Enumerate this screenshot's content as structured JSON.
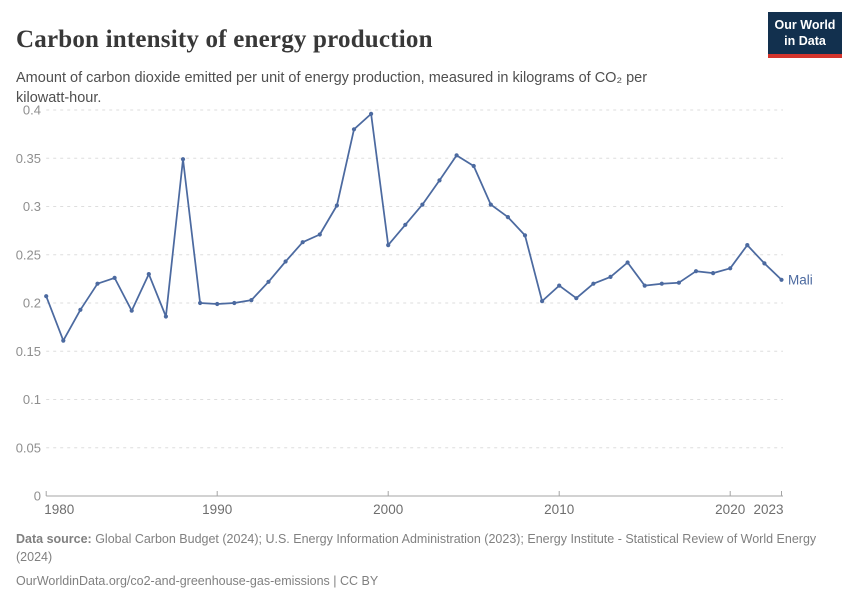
{
  "header": {
    "title": "Carbon intensity of energy production",
    "subtitle": "Amount of carbon dioxide emitted per unit of energy production, measured in kilograms of CO₂ per kilowatt-hour.",
    "logo": {
      "line1": "Our World",
      "line2": "in Data"
    }
  },
  "chart_data": {
    "type": "line",
    "title": "Carbon intensity of energy production",
    "ylabel": "kilograms of CO₂ per kilowatt-hour",
    "xlabel": "",
    "xlim": [
      1980,
      2023
    ],
    "ylim": [
      0,
      0.4
    ],
    "x_ticks": [
      1980,
      1990,
      2000,
      2010,
      2020,
      2023
    ],
    "y_ticks": [
      0,
      0.05,
      0.1,
      0.15,
      0.2,
      0.25,
      0.3,
      0.35,
      0.4
    ],
    "grid": "horizontal-dashed",
    "legend_position": "end-of-line-label",
    "series": [
      {
        "name": "Mali",
        "end_label": "Mali",
        "x": [
          1980,
          1981,
          1982,
          1983,
          1984,
          1985,
          1986,
          1987,
          1988,
          1989,
          1990,
          1991,
          1992,
          1993,
          1994,
          1995,
          1996,
          1997,
          1998,
          1999,
          2000,
          2001,
          2002,
          2003,
          2004,
          2005,
          2006,
          2007,
          2008,
          2009,
          2010,
          2011,
          2012,
          2013,
          2014,
          2015,
          2016,
          2017,
          2018,
          2019,
          2020,
          2021,
          2022,
          2023
        ],
        "values": [
          0.207,
          0.161,
          0.193,
          0.22,
          0.226,
          0.192,
          0.23,
          0.186,
          0.349,
          0.2,
          0.199,
          0.2,
          0.203,
          0.222,
          0.243,
          0.263,
          0.271,
          0.301,
          0.38,
          0.396,
          0.26,
          0.281,
          0.302,
          0.327,
          0.353,
          0.342,
          0.302,
          0.289,
          0.27,
          0.202,
          0.218,
          0.205,
          0.22,
          0.227,
          0.242,
          0.218,
          0.22,
          0.221,
          0.233,
          0.231,
          0.236,
          0.26,
          0.241,
          0.224
        ]
      }
    ]
  },
  "footer": {
    "source_label": "Data source:",
    "source_text": " Global Carbon Budget (2024); U.S. Energy Information Administration (2023); Energy Institute - Statistical Review of World Energy (2024)",
    "link_text": "OurWorldinData.org/co2-and-greenhouse-gas-emissions | CC BY"
  },
  "colors": {
    "line": "#4C6AA0",
    "grid": "#DEDEDE",
    "axis": "#A5A5A5",
    "x_tick_label": "#6E6E6E",
    "y_tick_label": "#8F8F8F",
    "title": "#383838",
    "subtitle": "#4F4F4F",
    "footer": "#808080",
    "logo_bg": "#12304E",
    "logo_red": "#D4342C"
  }
}
